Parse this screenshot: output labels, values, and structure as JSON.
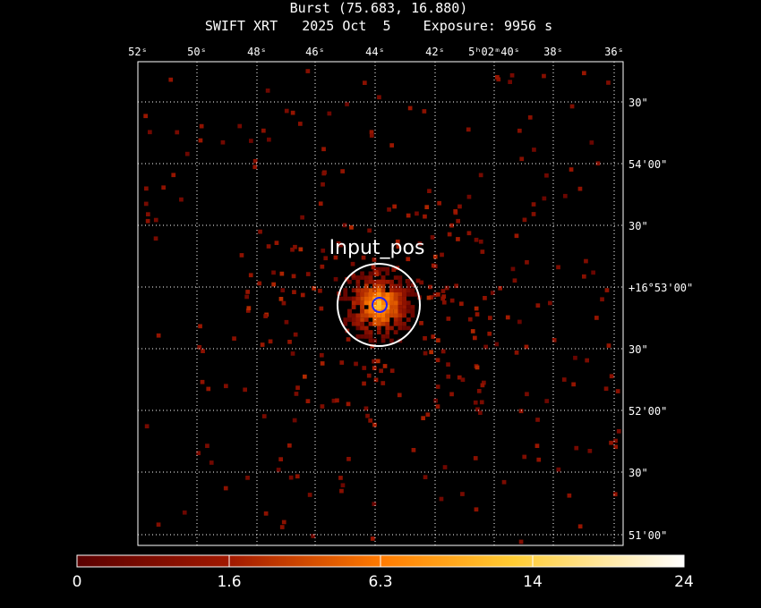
{
  "header": {
    "title": "Burst (75.683, 16.880)",
    "subtitle": "SWIFT XRT   2025 Oct  5    Exposure: 9956 s"
  },
  "axes": {
    "ra_ticks": [
      "52ˢ",
      "50ˢ",
      "48ˢ",
      "46ˢ",
      "44ˢ",
      "42ˢ",
      "5ʰ02ᵐ40ˢ",
      "38ˢ",
      "36ˢ"
    ],
    "dec_ticks": [
      "30\"",
      "54'00\"",
      "30\"",
      "+16°53'00\"",
      "30\"",
      "52'00\"",
      "30\"",
      "51'00\""
    ],
    "grid": true
  },
  "source": {
    "label": "Input_pos"
  },
  "colorbar": {
    "tick_labels": [
      "0",
      "1.6",
      "6.3",
      "14",
      "24"
    ],
    "min": 0,
    "max": 24
  },
  "colors": {
    "background": "#000000",
    "frame": "#ffffff",
    "grid": "#ffffff",
    "source_circle": "#ffffff",
    "inner_circle": "#2020ff",
    "cmap_low": "#5a0000",
    "cmap_mid": "#ff8800",
    "cmap_high": "#ffffff"
  }
}
